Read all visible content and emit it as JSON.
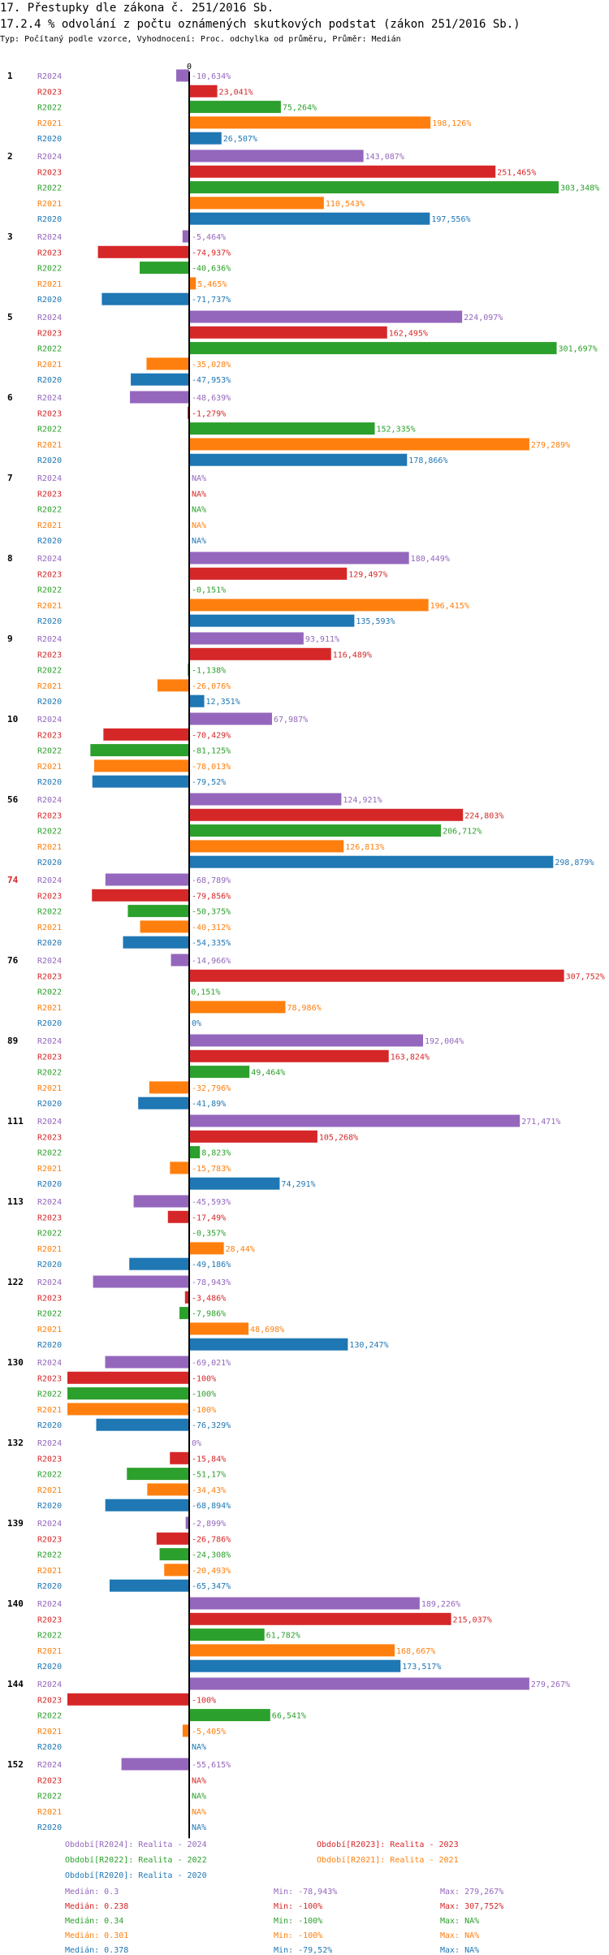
{
  "header": {
    "title": "17. Přestupky dle zákona č. 251/2016 Sb.",
    "subtitle": "17.2.4 % odvolání z počtu oznámených skutkových podstat (zákon 251/2016 Sb.)",
    "info": "Typ: Počítaný podle vzorce, Vyhodnocení: Proc. odchylka od průměru, Průměr: Medián"
  },
  "colors": {
    "R2024": "#9467bd",
    "R2023": "#d62728",
    "R2022": "#2ca02c",
    "R2021": "#ff7f0e",
    "R2020": "#1f77b4",
    "axis": "#000000",
    "highlight": "#d62728"
  },
  "chart_data": {
    "type": "bar",
    "orientation": "horizontal",
    "axis_zero_label": "0",
    "series_names": [
      "R2024",
      "R2023",
      "R2022",
      "R2021",
      "R2020"
    ],
    "highlighted_category": "74",
    "groups": [
      {
        "id": "1",
        "values": [
          -10.634,
          23.041,
          75.264,
          198.126,
          26.507
        ],
        "labels": [
          "-10,634%",
          "23,041%",
          "75,264%",
          "198,126%",
          "26,507%"
        ]
      },
      {
        "id": "2",
        "values": [
          143.087,
          251.465,
          303.348,
          110.543,
          197.556
        ],
        "labels": [
          "143,087%",
          "251,465%",
          "303,348%",
          "110,543%",
          "197,556%"
        ]
      },
      {
        "id": "3",
        "values": [
          -5.464,
          -74.937,
          -40.636,
          5.465,
          -71.737
        ],
        "labels": [
          "-5,464%",
          "-74,937%",
          "-40,636%",
          "5,465%",
          "-71,737%"
        ]
      },
      {
        "id": "5",
        "values": [
          224.097,
          162.495,
          301.697,
          -35.028,
          -47.953
        ],
        "labels": [
          "224,097%",
          "162,495%",
          "301,697%",
          "-35,028%",
          "-47,953%"
        ]
      },
      {
        "id": "6",
        "values": [
          -48.639,
          -1.279,
          152.335,
          279.289,
          178.866
        ],
        "labels": [
          "-48,639%",
          "-1,279%",
          "152,335%",
          "279,289%",
          "178,866%"
        ]
      },
      {
        "id": "7",
        "values": [
          null,
          null,
          null,
          null,
          null
        ],
        "labels": [
          "NA%",
          "NA%",
          "NA%",
          "NA%",
          "NA%"
        ]
      },
      {
        "id": "8",
        "values": [
          180.449,
          129.497,
          -0.151,
          196.415,
          135.593
        ],
        "labels": [
          "180,449%",
          "129,497%",
          "-0,151%",
          "196,415%",
          "135,593%"
        ]
      },
      {
        "id": "9",
        "values": [
          93.911,
          116.489,
          -1.138,
          -26.076,
          12.351
        ],
        "labels": [
          "93,911%",
          "116,489%",
          "-1,138%",
          "-26,076%",
          "12,351%"
        ]
      },
      {
        "id": "10",
        "values": [
          67.987,
          -70.429,
          -81.125,
          -78.013,
          -79.52
        ],
        "labels": [
          "67,987%",
          "-70,429%",
          "-81,125%",
          "-78,013%",
          "-79,52%"
        ]
      },
      {
        "id": "56",
        "values": [
          124.921,
          224.803,
          206.712,
          126.813,
          298.879
        ],
        "labels": [
          "124,921%",
          "224,803%",
          "206,712%",
          "126,813%",
          "298,879%"
        ]
      },
      {
        "id": "74",
        "values": [
          -68.789,
          -79.856,
          -50.375,
          -40.312,
          -54.335
        ],
        "labels": [
          "-68,789%",
          "-79,856%",
          "-50,375%",
          "-40,312%",
          "-54,335%"
        ]
      },
      {
        "id": "76",
        "values": [
          -14.966,
          307.752,
          0.151,
          78.986,
          0
        ],
        "labels": [
          "-14,966%",
          "307,752%",
          "0,151%",
          "78,986%",
          "0%"
        ]
      },
      {
        "id": "89",
        "values": [
          192.004,
          163.824,
          49.464,
          -32.796,
          -41.89
        ],
        "labels": [
          "192,004%",
          "163,824%",
          "49,464%",
          "-32,796%",
          "-41,89%"
        ]
      },
      {
        "id": "111",
        "values": [
          271.471,
          105.268,
          8.823,
          -15.783,
          74.291
        ],
        "labels": [
          "271,471%",
          "105,268%",
          "8,823%",
          "-15,783%",
          "74,291%"
        ]
      },
      {
        "id": "113",
        "values": [
          -45.593,
          -17.49,
          -0.357,
          28.44,
          -49.186
        ],
        "labels": [
          "-45,593%",
          "-17,49%",
          "-0,357%",
          "28,44%",
          "-49,186%"
        ]
      },
      {
        "id": "122",
        "values": [
          -78.943,
          -3.486,
          -7.986,
          48.698,
          130.247
        ],
        "labels": [
          "-78,943%",
          "-3,486%",
          "-7,986%",
          "48,698%",
          "130,247%"
        ]
      },
      {
        "id": "130",
        "values": [
          -69.021,
          -100,
          -100,
          -100,
          -76.329
        ],
        "labels": [
          "-69,021%",
          "-100%",
          "-100%",
          "-100%",
          "-76,329%"
        ]
      },
      {
        "id": "132",
        "values": [
          0,
          -15.84,
          -51.17,
          -34.43,
          -68.894
        ],
        "labels": [
          "0%",
          "-15,84%",
          "-51,17%",
          "-34,43%",
          "-68,894%"
        ]
      },
      {
        "id": "139",
        "values": [
          -2.899,
          -26.786,
          -24.308,
          -20.493,
          -65.347
        ],
        "labels": [
          "-2,899%",
          "-26,786%",
          "-24,308%",
          "-20,493%",
          "-65,347%"
        ]
      },
      {
        "id": "140",
        "values": [
          189.226,
          215.037,
          61.782,
          168.667,
          173.517
        ],
        "labels": [
          "189,226%",
          "215,037%",
          "61,782%",
          "168,667%",
          "173,517%"
        ]
      },
      {
        "id": "144",
        "values": [
          279.267,
          -100,
          66.541,
          -5.405,
          null
        ],
        "labels": [
          "279,267%",
          "-100%",
          "66,541%",
          "-5,405%",
          "NA%"
        ]
      },
      {
        "id": "152",
        "values": [
          -55.615,
          null,
          null,
          null,
          null
        ],
        "labels": [
          "-55,615%",
          "NA%",
          "NA%",
          "NA%",
          "NA%"
        ]
      }
    ]
  },
  "legend": {
    "periods": [
      {
        "series": "R2024",
        "label": "Období[R2024]: Realita - 2024"
      },
      {
        "series": "R2023",
        "label": "Období[R2023]: Realita - 2023"
      },
      {
        "series": "R2022",
        "label": "Období[R2022]: Realita - 2022"
      },
      {
        "series": "R2021",
        "label": "Období[R2021]: Realita - 2021"
      },
      {
        "series": "R2020",
        "label": "Období[R2020]: Realita - 2020"
      }
    ],
    "stats": [
      {
        "series": "R2024",
        "median": "Medián: 0.3",
        "min": "Min: -78,943%",
        "max": "Max: 279,267%"
      },
      {
        "series": "R2023",
        "median": "Medián: 0.238",
        "min": "Min: -100%",
        "max": "Max: 307,752%"
      },
      {
        "series": "R2022",
        "median": "Medián: 0.34",
        "min": "Min: -100%",
        "max": "Max: NA%"
      },
      {
        "series": "R2021",
        "median": "Medián: 0.301",
        "min": "Min: -100%",
        "max": "Max: NA%"
      },
      {
        "series": "R2020",
        "median": "Medián: 0.378",
        "min": "Min: -79,52%",
        "max": "Max: NA%"
      }
    ]
  }
}
